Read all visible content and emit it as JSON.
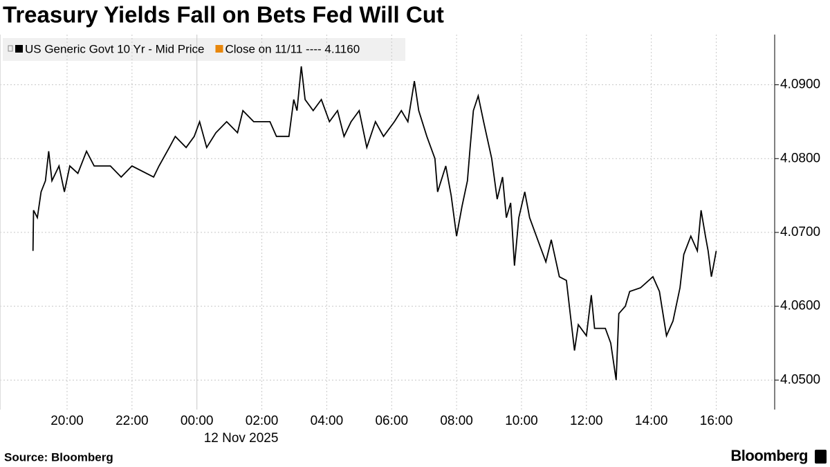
{
  "chart_data": {
    "type": "line",
    "title": "Treasury Yields Fall on Bets Fed Will Cut",
    "source": "Source: Bloomberg",
    "brand": "Bloomberg",
    "x_date_label": "12 Nov 2025",
    "legend": [
      {
        "name": "US Generic Govt 10 Yr - Mid Price",
        "color": "#000000"
      },
      {
        "name": "Close on 11/11 ---- 4.1160",
        "color": "#e8870c"
      }
    ],
    "x": [
      "18:57",
      "18:58",
      "19:05",
      "19:12",
      "19:20",
      "19:26",
      "19:32",
      "19:45",
      "19:55",
      "20:05",
      "20:20",
      "20:36",
      "20:50",
      "21:20",
      "21:40",
      "22:00",
      "22:40",
      "22:50",
      "23:09",
      "23:20",
      "23:40",
      "23:55",
      "00:05",
      "00:18",
      "00:35",
      "00:55",
      "01:15",
      "01:25",
      "01:45",
      "02:15",
      "02:27",
      "02:50",
      "02:59",
      "03:05",
      "03:13",
      "03:20",
      "03:35",
      "03:50",
      "04:05",
      "04:20",
      "04:32",
      "04:45",
      "05:00",
      "05:14",
      "05:30",
      "05:45",
      "06:05",
      "06:18",
      "06:30",
      "06:42",
      "06:50",
      "07:05",
      "07:20",
      "07:25",
      "07:40",
      "07:50",
      "08:00",
      "08:10",
      "08:20",
      "08:25",
      "08:31",
      "08:40",
      "08:50",
      "09:05",
      "09:15",
      "09:25",
      "09:32",
      "09:40",
      "09:47",
      "09:55",
      "10:06",
      "10:15",
      "10:30",
      "10:45",
      "10:55",
      "11:10",
      "11:23",
      "11:30",
      "11:38",
      "11:45",
      "12:00",
      "12:09",
      "12:15",
      "12:35",
      "12:45",
      "12:55",
      "13:00",
      "13:12",
      "13:20",
      "13:40",
      "14:03",
      "14:15",
      "14:28",
      "14:40",
      "14:53",
      "15:00",
      "15:13",
      "15:25",
      "15:32",
      "15:40",
      "15:45",
      "15:51",
      "15:55",
      "16:00"
    ],
    "series": [
      {
        "name": "US Generic Govt 10 Yr - Mid Price",
        "color": "#000000",
        "values": [
          4.0675,
          4.073,
          4.072,
          4.0755,
          4.077,
          4.081,
          4.077,
          4.079,
          4.0755,
          4.079,
          4.078,
          4.081,
          4.079,
          4.079,
          4.0775,
          4.079,
          4.0775,
          4.079,
          4.0815,
          4.083,
          4.0815,
          4.083,
          4.085,
          4.0815,
          4.0835,
          4.085,
          4.0835,
          4.0865,
          4.085,
          4.085,
          4.083,
          4.083,
          4.088,
          4.0865,
          4.0925,
          4.088,
          4.0865,
          4.088,
          4.085,
          4.0865,
          4.083,
          4.085,
          4.0865,
          4.0815,
          4.085,
          4.083,
          4.085,
          4.0865,
          4.085,
          4.0905,
          4.0865,
          4.083,
          4.08,
          4.0755,
          4.079,
          4.075,
          4.0695,
          4.0735,
          4.077,
          4.0815,
          4.0865,
          4.0885,
          4.085,
          4.08,
          4.0745,
          4.0775,
          4.072,
          4.074,
          4.0655,
          4.072,
          4.0755,
          4.072,
          4.069,
          4.066,
          4.069,
          4.064,
          4.0635,
          4.059,
          4.054,
          4.0575,
          4.056,
          4.0615,
          4.057,
          4.057,
          4.055,
          4.05,
          4.059,
          4.06,
          4.062,
          4.0625,
          4.064,
          4.062,
          4.056,
          4.058,
          4.0625,
          4.067,
          4.0695,
          4.0675,
          4.073,
          4.0695,
          4.0675,
          4.064,
          4.0655,
          4.0675
        ]
      }
    ],
    "xlim": [
      "17:56",
      "17:48"
    ],
    "xticks": [
      "20:00",
      "22:00",
      "00:00",
      "02:00",
      "04:00",
      "06:00",
      "08:00",
      "10:00",
      "12:00",
      "14:00",
      "16:00"
    ],
    "ylim": [
      4.046,
      4.0968
    ],
    "yticks": [
      {
        "value": 4.05,
        "label": "4.0500"
      },
      {
        "value": 4.06,
        "label": "4.0600"
      },
      {
        "value": 4.07,
        "label": "4.0700"
      },
      {
        "value": 4.08,
        "label": "4.0800"
      },
      {
        "value": 4.09,
        "label": "4.0900"
      }
    ],
    "grid": true
  }
}
